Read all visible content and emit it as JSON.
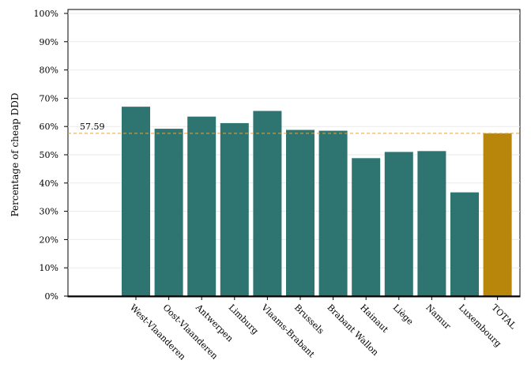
{
  "chart_data": {
    "type": "bar",
    "title": "",
    "xlabel": "",
    "ylabel": "Percentage of cheap DDD",
    "ylim": [
      0,
      100
    ],
    "y_ticks": [
      "0%",
      "10%",
      "20%",
      "30%",
      "40%",
      "50%",
      "60%",
      "70%",
      "80%",
      "90%",
      "100%"
    ],
    "categories": [
      "West-Vlaanderen",
      "Oost-Vlaanderen",
      "Antwerpen",
      "Limburg",
      "Vlaams-Brabant",
      "Brussels",
      "Brabant Wallon",
      "Hainaut",
      "Liège",
      "Namur",
      "Luxembourg",
      "TOTAL"
    ],
    "values": [
      67.0,
      59.2,
      63.5,
      61.2,
      65.5,
      58.8,
      58.5,
      48.8,
      51.0,
      51.3,
      36.7,
      57.59
    ],
    "bar_colors": [
      "#2e7571",
      "#2e7571",
      "#2e7571",
      "#2e7571",
      "#2e7571",
      "#2e7571",
      "#2e7571",
      "#2e7571",
      "#2e7571",
      "#2e7571",
      "#2e7571",
      "#b8860b"
    ],
    "reference_line": {
      "value": 57.59,
      "label": "57.59",
      "color": "#e8a33d",
      "style": "dashed"
    },
    "grid": true,
    "legend": "none"
  }
}
